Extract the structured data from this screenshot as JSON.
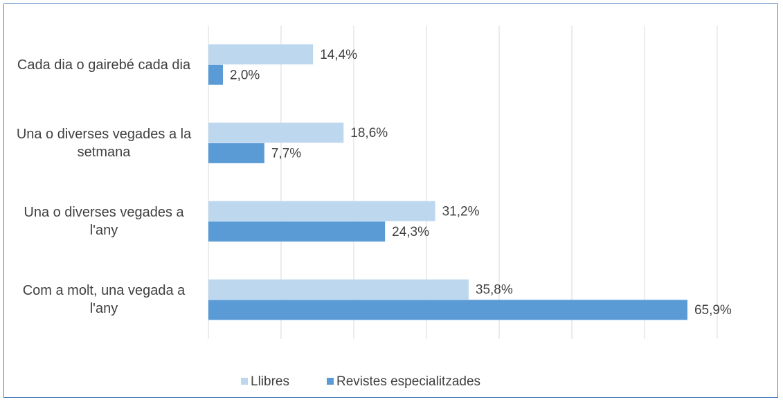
{
  "chart_data": {
    "type": "barh",
    "categories": [
      "Cada dia o gairebé cada dia",
      "Una o diverses vegades a la setmana",
      "Una o diverses vegades a l'any",
      "Com a molt, una vegada a l'any"
    ],
    "series": [
      {
        "name": "Llibres",
        "color": "#bdd7ee",
        "values": [
          14.4,
          18.6,
          31.2,
          35.8
        ],
        "value_labels": [
          "14,4%",
          "18,6%",
          "31,2%",
          "35,8%"
        ]
      },
      {
        "name": "Revistes especialitzades",
        "color": "#5b9bd5",
        "values": [
          2.0,
          7.7,
          24.3,
          65.9
        ],
        "value_labels": [
          "2,0%",
          "7,7%",
          "24,3%",
          "65,9%"
        ]
      }
    ],
    "xlim": [
      0,
      70
    ],
    "xticks": [
      0,
      10,
      20,
      30,
      40,
      50,
      60,
      70
    ],
    "grid": true,
    "legend": "bottom"
  }
}
